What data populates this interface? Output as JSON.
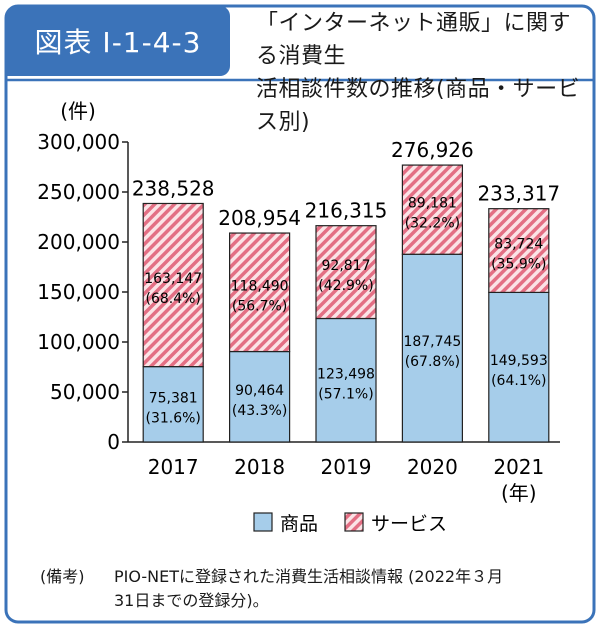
{
  "header": {
    "badge": "図表 I-1-4-3",
    "title_line1": "「インターネット通販」に関する消費生",
    "title_line2": "活相談件数の推移(商品・サービス別)"
  },
  "note": {
    "label": "(備考)",
    "line1": "PIO-NETに登録された消費生活相談情報 (2022年３月",
    "line2": "31日までの登録分)。"
  },
  "colors": {
    "frame": "#3b73b9",
    "goods": "#a6cdea",
    "service_stripe": "#e36f84",
    "service_bg": "#fbe3e6"
  },
  "chart_data": {
    "type": "bar",
    "stacked": true,
    "ylabel": "(件)",
    "xunit": "(年)",
    "ylim": [
      0,
      300000
    ],
    "yticks": [
      "0",
      "50,000",
      "100,000",
      "150,000",
      "200,000",
      "250,000",
      "300,000"
    ],
    "categories": [
      "2017",
      "2018",
      "2019",
      "2020",
      "2021"
    ],
    "totals": [
      "238,528",
      "208,954",
      "216,315",
      "276,926",
      "233,317"
    ],
    "series": [
      {
        "name": "商品",
        "values": [
          75381,
          90464,
          123498,
          187745,
          149593
        ],
        "labels": [
          "75,381",
          "90,464",
          "123,498",
          "187,745",
          "149,593"
        ],
        "shares": [
          "(31.6%)",
          "(43.3%)",
          "(57.1%)",
          "(67.8%)",
          "(64.1%)"
        ]
      },
      {
        "name": "サービス",
        "values": [
          163147,
          118490,
          92817,
          89181,
          83724
        ],
        "labels": [
          "163,147",
          "118,490",
          "92,817",
          "89,181",
          "83,724"
        ],
        "shares": [
          "(68.4%)",
          "(56.7%)",
          "(42.9%)",
          "(32.2%)",
          "(35.9%)"
        ]
      }
    ],
    "legend": "bottom"
  }
}
